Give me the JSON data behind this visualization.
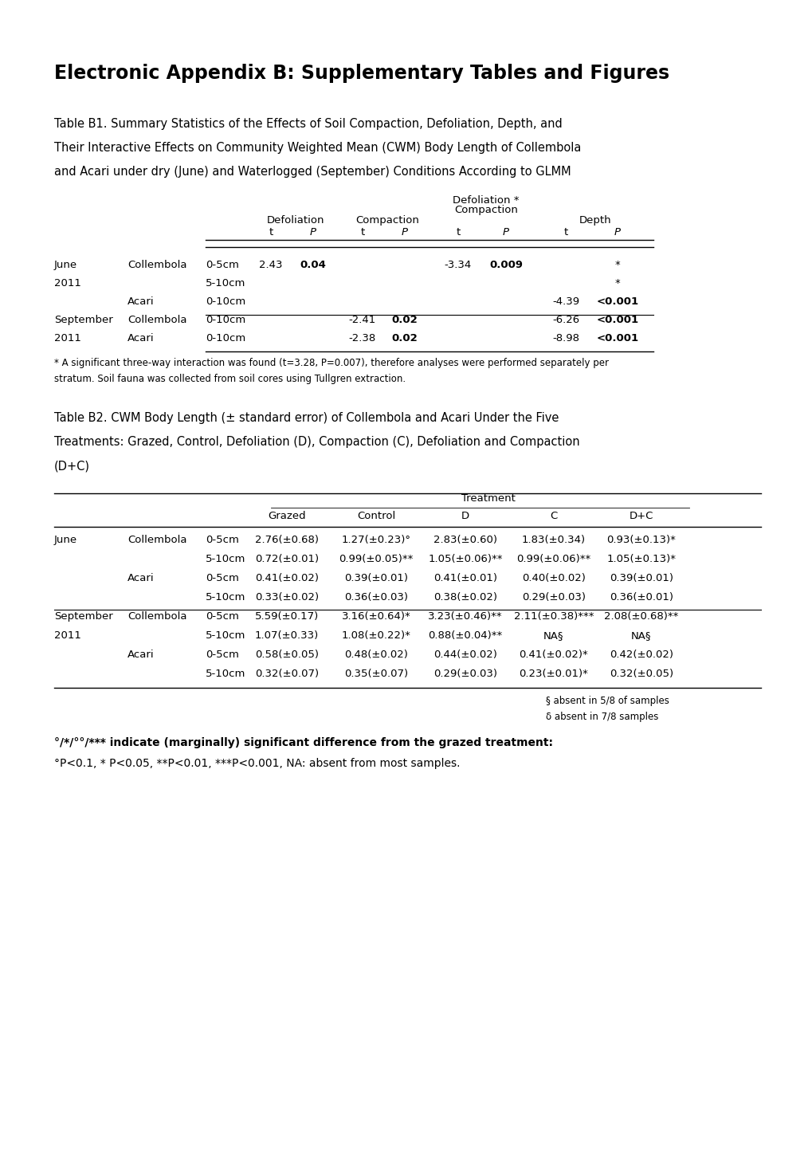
{
  "title": "Electronic Appendix B: Supplementary Tables and Figures",
  "table_b1_caption_line1": "Table B1. Summary Statistics of the Effects of Soil Compaction, Defoliation, Depth, and",
  "table_b1_caption_line2": "Their Interactive Effects on Community Weighted Mean (CWM) Body Length of Collembola",
  "table_b1_caption_line3": "and Acari under dry (June) and Waterlogged (September) Conditions According to GLMM",
  "table_b1_footnote1": "* A significant three-way interaction was found (t=3.28, P=0.007), therefore analyses were performed separately per",
  "table_b1_footnote2": "stratum. Soil fauna was collected from soil cores using Tullgren extraction.",
  "table_b2_caption_line1": "Table B2. CWM Body Length (± standard error) of Collembola and Acari Under the Five",
  "table_b2_caption_line2": "Treatments: Grazed, Control, Defoliation (D), Compaction (C), Defoliation and Compaction",
  "table_b2_caption_line3": "(D+C)",
  "table_b2_footnote1": "§ absent in 5/8 of samples",
  "table_b2_footnote2": "δ absent in 7/8 samples",
  "table_b2_footnote3": "°/*/°°/*** indicate (marginally) significant difference from the grazed treatment:",
  "table_b2_footnote4": "°P<0.1, * P<0.05, **P<0.01, ***P<0.001, NA: absent from most samples.",
  "background_color": "#ffffff"
}
